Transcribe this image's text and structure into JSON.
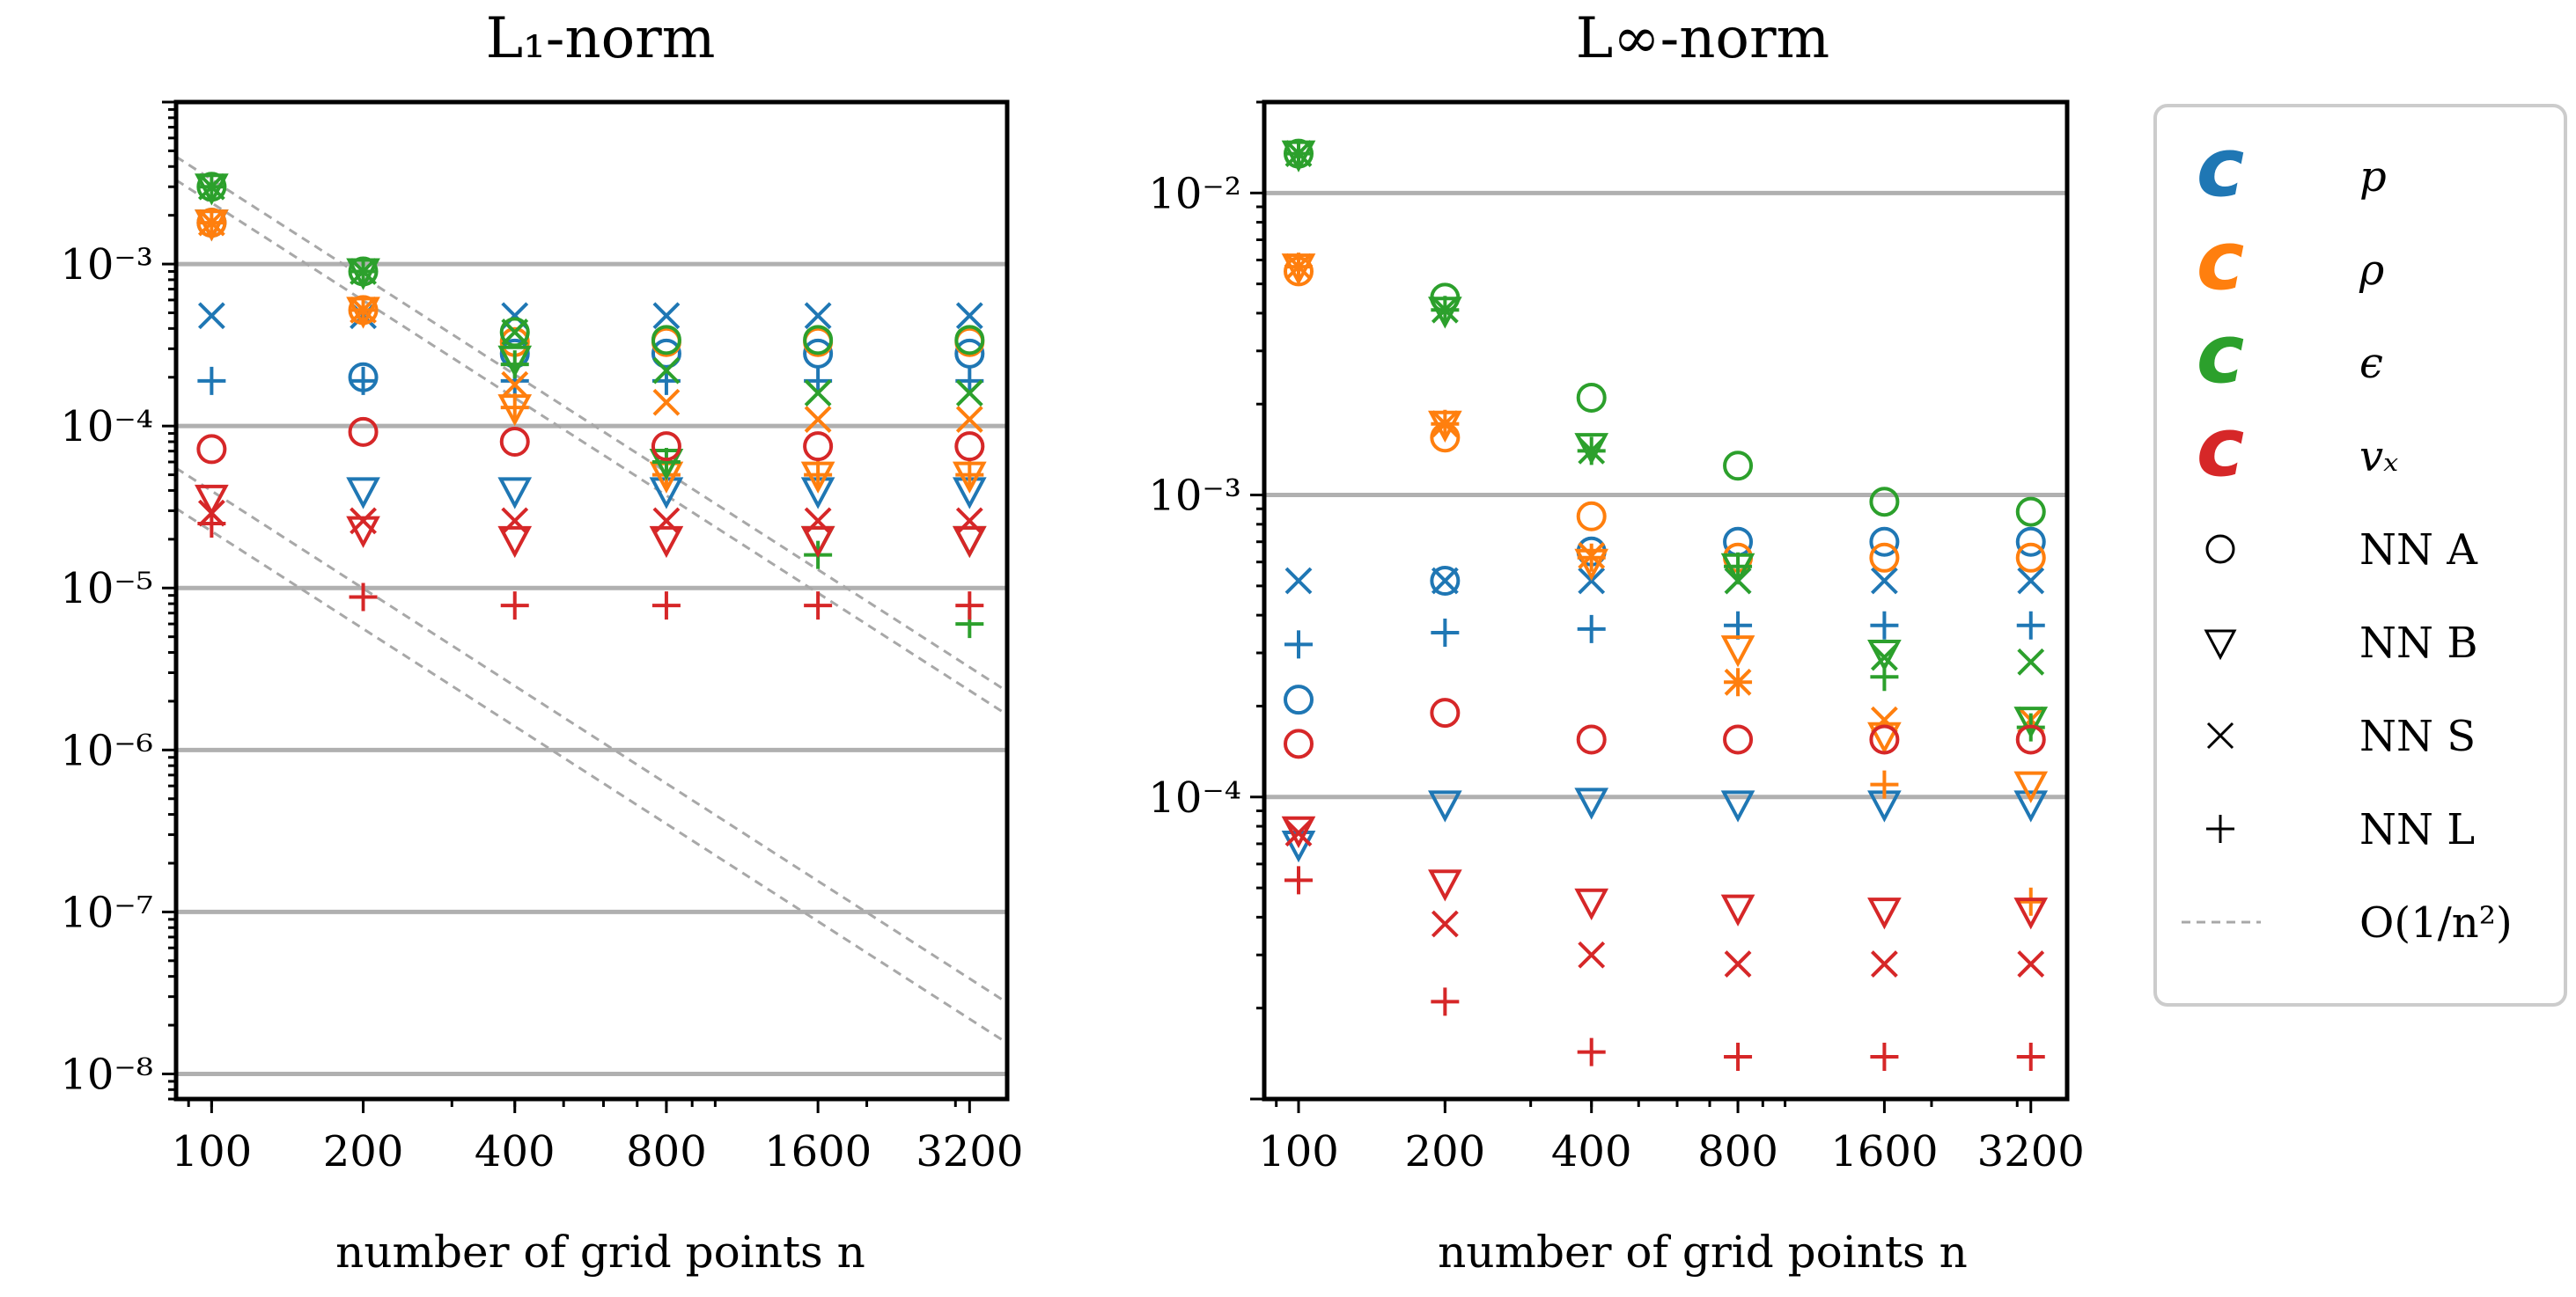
{
  "chart_data": [
    {
      "type": "scatter",
      "title": "L₁-norm",
      "xlabel": "number of grid points n",
      "ylabel": "",
      "xscale": "log",
      "yscale": "log",
      "xlim": [
        85,
        3800
      ],
      "ylim": [
        7e-09,
        0.01
      ],
      "x": [
        100,
        200,
        400,
        800,
        1600,
        3200
      ],
      "x_tick_labels": [
        "100",
        "200",
        "400",
        "800",
        "1600",
        "3200"
      ],
      "y_ticks": [
        1e-08,
        1e-07,
        1e-06,
        1e-05,
        0.0001,
        0.001
      ],
      "y_tick_labels": [
        "10⁻⁸",
        "10⁻⁷",
        "10⁻⁶",
        "10⁻⁵",
        "10⁻⁴",
        "10⁻³"
      ],
      "grid": "horizontal major lines",
      "series": [
        {
          "name": "p NN A",
          "color": "#1f77b4",
          "marker": "circle",
          "values": [
            0.0018,
            0.0002,
            0.00028,
            0.00028,
            0.00028,
            0.00028
          ]
        },
        {
          "name": "p NN B",
          "color": "#1f77b4",
          "marker": "triangle",
          "values": [
            0.0018,
            4e-05,
            4e-05,
            4e-05,
            4e-05,
            4e-05
          ]
        },
        {
          "name": "p NN S",
          "color": "#1f77b4",
          "marker": "x",
          "values": [
            0.00048,
            0.00048,
            0.00048,
            0.00048,
            0.00048,
            0.00048
          ]
        },
        {
          "name": "p NN L",
          "color": "#1f77b4",
          "marker": "plus",
          "values": [
            0.00019,
            0.00019,
            0.00019,
            0.00019,
            0.00019,
            0.00019
          ]
        },
        {
          "name": "ρ NN A",
          "color": "#ff7f0e",
          "marker": "circle",
          "values": [
            0.0018,
            0.00052,
            0.00033,
            0.00033,
            0.00033,
            0.00033
          ]
        },
        {
          "name": "ρ NN B",
          "color": "#ff7f0e",
          "marker": "triangle",
          "values": [
            0.0018,
            0.00052,
            0.00013,
            5e-05,
            5e-05,
            5e-05
          ]
        },
        {
          "name": "ρ NN S",
          "color": "#ff7f0e",
          "marker": "x",
          "values": [
            0.0018,
            0.00052,
            0.00018,
            0.00014,
            0.00011,
            0.00011
          ]
        },
        {
          "name": "ρ NN L",
          "color": "#ff7f0e",
          "marker": "plus",
          "values": [
            0.0018,
            0.00052,
            0.00013,
            5e-05,
            5e-05,
            5e-05
          ]
        },
        {
          "name": "ϵ NN A",
          "color": "#2ca02c",
          "marker": "circle",
          "values": [
            0.003,
            0.0009,
            0.00038,
            0.00034,
            0.00034,
            0.00034
          ]
        },
        {
          "name": "ϵ NN B",
          "color": "#2ca02c",
          "marker": "triangle",
          "values": [
            0.003,
            0.0009,
            0.00026,
            6e-05,
            2e-05,
            2e-05
          ]
        },
        {
          "name": "ϵ NN S",
          "color": "#2ca02c",
          "marker": "x",
          "values": [
            0.003,
            0.0009,
            0.00038,
            0.00022,
            0.00016,
            0.00016
          ]
        },
        {
          "name": "ϵ NN L",
          "color": "#2ca02c",
          "marker": "plus",
          "values": [
            0.003,
            0.0009,
            0.00024,
            6e-05,
            1.6e-05,
            6e-06
          ]
        },
        {
          "name": "vₓ NN A",
          "color": "#d62728",
          "marker": "circle",
          "values": [
            7.2e-05,
            9.2e-05,
            8e-05,
            7.5e-05,
            7.5e-05,
            7.5e-05
          ]
        },
        {
          "name": "vₓ NN B",
          "color": "#d62728",
          "marker": "triangle",
          "values": [
            3.6e-05,
            2.3e-05,
            2e-05,
            2e-05,
            2e-05,
            2e-05
          ]
        },
        {
          "name": "vₓ NN S",
          "color": "#d62728",
          "marker": "x",
          "values": [
            2.9e-05,
            2.6e-05,
            2.6e-05,
            2.6e-05,
            2.6e-05,
            2.6e-05
          ]
        },
        {
          "name": "vₓ NN L",
          "color": "#d62728",
          "marker": "plus",
          "values": [
            2.5e-05,
            8.8e-06,
            7.8e-06,
            7.8e-06,
            7.8e-06,
            7.8e-06
          ]
        }
      ],
      "reference_lines": [
        {
          "name": "O(1/n²)",
          "x": [
            85,
            3800
          ],
          "y": [
            0.0046,
            2.3e-06
          ]
        },
        {
          "name": "O(1/n²)",
          "x": [
            85,
            3800
          ],
          "y": [
            0.0033,
            1.65e-06
          ]
        },
        {
          "name": "O(1/n²)",
          "x": [
            85,
            3800
          ],
          "y": [
            5.5e-05,
            2.75e-08
          ]
        },
        {
          "name": "O(1/n²)",
          "x": [
            85,
            3800
          ],
          "y": [
            3.1e-05,
            1.55e-08
          ]
        }
      ]
    },
    {
      "type": "scatter",
      "title": "L∞-norm",
      "xlabel": "number of grid points n",
      "ylabel": "",
      "xscale": "log",
      "yscale": "log",
      "xlim": [
        85,
        3800
      ],
      "ylim": [
        1e-05,
        0.02
      ],
      "x": [
        100,
        200,
        400,
        800,
        1600,
        3200
      ],
      "x_tick_labels": [
        "100",
        "200",
        "400",
        "800",
        "1600",
        "3200"
      ],
      "y_ticks": [
        0.0001,
        0.001,
        0.01
      ],
      "y_tick_labels": [
        "10⁻⁴",
        "10⁻³",
        "10⁻²"
      ],
      "grid": "horizontal major lines",
      "series": [
        {
          "name": "p NN A",
          "color": "#1f77b4",
          "marker": "circle",
          "values": [
            0.00021,
            0.00052,
            0.00065,
            0.0007,
            0.0007,
            0.0007
          ]
        },
        {
          "name": "p NN B",
          "color": "#1f77b4",
          "marker": "triangle",
          "values": [
            7e-05,
            9.5e-05,
            9.7e-05,
            9.5e-05,
            9.5e-05,
            9.5e-05
          ]
        },
        {
          "name": "p NN S",
          "color": "#1f77b4",
          "marker": "x",
          "values": [
            0.00052,
            0.00052,
            0.00052,
            0.00052,
            0.00052,
            0.00052
          ]
        },
        {
          "name": "p NN L",
          "color": "#1f77b4",
          "marker": "plus",
          "values": [
            0.00032,
            0.00035,
            0.00036,
            0.00037,
            0.00037,
            0.00037
          ]
        },
        {
          "name": "ρ NN A",
          "color": "#ff7f0e",
          "marker": "circle",
          "values": [
            0.0055,
            0.00155,
            0.00085,
            0.00062,
            0.00062,
            0.00062
          ]
        },
        {
          "name": "ρ NN B",
          "color": "#ff7f0e",
          "marker": "triangle",
          "values": [
            0.0057,
            0.00172,
            0.0006,
            0.00031,
            0.00016,
            0.00011
          ]
        },
        {
          "name": "ρ NN S",
          "color": "#ff7f0e",
          "marker": "x",
          "values": [
            0.0057,
            0.00172,
            0.00063,
            0.00024,
            0.00018,
            0.00018
          ]
        },
        {
          "name": "ρ NN L",
          "color": "#ff7f0e",
          "marker": "plus",
          "values": [
            0.0057,
            0.00172,
            0.00062,
            0.00024,
            0.00011,
            4.5e-05
          ]
        },
        {
          "name": "ϵ NN A",
          "color": "#2ca02c",
          "marker": "circle",
          "values": [
            0.0135,
            0.0045,
            0.0021,
            0.00125,
            0.00095,
            0.00088
          ]
        },
        {
          "name": "ϵ NN B",
          "color": "#2ca02c",
          "marker": "triangle",
          "values": [
            0.0135,
            0.0041,
            0.00145,
            0.00058,
            0.0003,
            0.00018
          ]
        },
        {
          "name": "ϵ NN S",
          "color": "#2ca02c",
          "marker": "x",
          "values": [
            0.0135,
            0.0041,
            0.0014,
            0.00052,
            0.00029,
            0.00028
          ]
        },
        {
          "name": "ϵ NN L",
          "color": "#2ca02c",
          "marker": "plus",
          "values": [
            0.0135,
            0.0041,
            0.0014,
            0.00058,
            0.00025,
            0.00017
          ]
        },
        {
          "name": "vₓ NN A",
          "color": "#d62728",
          "marker": "circle",
          "values": [
            0.00015,
            0.00019,
            0.000155,
            0.000155,
            0.000155,
            0.000155
          ]
        },
        {
          "name": "vₓ NN B",
          "color": "#d62728",
          "marker": "triangle",
          "values": [
            7.8e-05,
            5.2e-05,
            4.5e-05,
            4.3e-05,
            4.2e-05,
            4.2e-05
          ]
        },
        {
          "name": "vₓ NN S",
          "color": "#d62728",
          "marker": "x",
          "values": [
            7.6e-05,
            3.8e-05,
            3e-05,
            2.8e-05,
            2.8e-05,
            2.8e-05
          ]
        },
        {
          "name": "vₓ NN L",
          "color": "#d62728",
          "marker": "plus",
          "values": [
            5.3e-05,
            2.1e-05,
            1.43e-05,
            1.38e-05,
            1.38e-05,
            1.38e-05
          ]
        }
      ]
    }
  ],
  "legend": {
    "placement": "right",
    "entries": [
      {
        "kind": "color",
        "glyph": "c",
        "label": "p",
        "color": "#1f77b4"
      },
      {
        "kind": "color",
        "glyph": "c",
        "label": "ρ",
        "color": "#ff7f0e"
      },
      {
        "kind": "color",
        "glyph": "c",
        "label": "ϵ",
        "color": "#2ca02c"
      },
      {
        "kind": "color",
        "glyph": "c",
        "label": "vₓ",
        "color": "#d62728"
      },
      {
        "kind": "marker",
        "marker": "circle",
        "label": "NN A"
      },
      {
        "kind": "marker",
        "marker": "triangle",
        "label": "NN B"
      },
      {
        "kind": "marker",
        "marker": "x",
        "label": "NN S"
      },
      {
        "kind": "marker",
        "marker": "plus",
        "label": "NN L"
      },
      {
        "kind": "line",
        "label": "O(1/n²)"
      }
    ]
  }
}
